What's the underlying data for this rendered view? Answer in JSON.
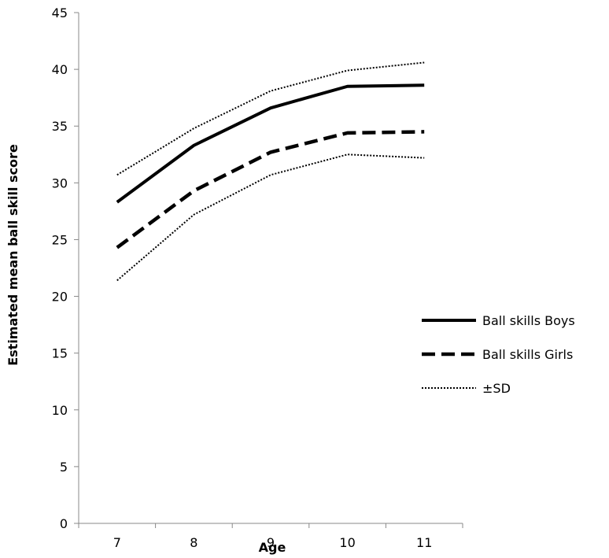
{
  "chart_data": {
    "type": "line",
    "title": "",
    "xlabel": "Age",
    "ylabel": "Estimated  mean ball skill score",
    "categories": [
      "7",
      "8",
      "9",
      "10",
      "11"
    ],
    "ylim": [
      0,
      45
    ],
    "yticks": [
      0,
      5,
      10,
      15,
      20,
      25,
      30,
      35,
      40,
      45
    ],
    "grid": false,
    "legend_position": "right",
    "series": [
      {
        "name": "Ball skills Boys",
        "values": [
          28.3,
          33.3,
          36.6,
          38.5,
          38.6
        ],
        "style": "solid",
        "color": "#000000"
      },
      {
        "name": "Ball skills Girls",
        "values": [
          24.3,
          29.3,
          32.7,
          34.4,
          34.5
        ],
        "style": "dashed",
        "color": "#000000"
      },
      {
        "name": "±SD",
        "values": [
          30.7,
          34.8,
          38.1,
          39.9,
          40.6
        ],
        "style": "dotted",
        "color": "#000000"
      },
      {
        "name": "",
        "values": [
          21.4,
          27.2,
          30.7,
          32.5,
          32.2
        ],
        "style": "dotted",
        "color": "#000000"
      }
    ],
    "legend": [
      {
        "label": "Ball skills Boys",
        "style": "solid"
      },
      {
        "label": "Ball skills Girls",
        "style": "dashed"
      },
      {
        "label": "±SD",
        "style": "dotted"
      }
    ]
  }
}
